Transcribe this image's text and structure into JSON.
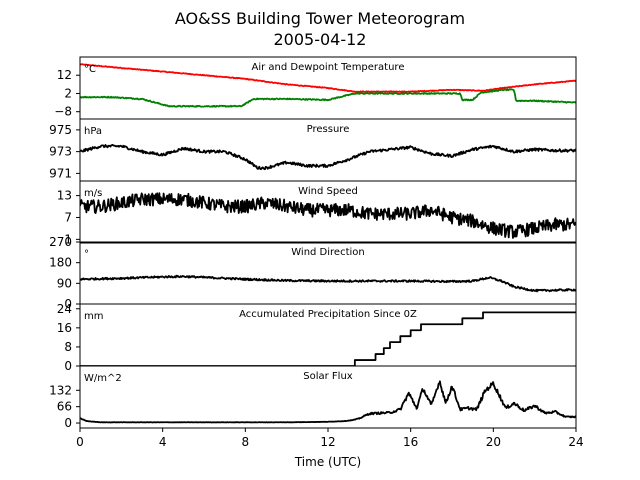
{
  "figure": {
    "title_line1": "AO&SS Building Tower Meteorogram",
    "title_line2": "2005-04-12",
    "xlabel": "Time (UTC)"
  },
  "chart_data": {
    "type": "line",
    "xlim": [
      0,
      24
    ],
    "xticks": [
      0,
      4,
      8,
      12,
      16,
      20,
      24
    ],
    "x_tick_labels": [
      "0",
      "4",
      "8",
      "12",
      "16",
      "20",
      "24"
    ],
    "panels": [
      {
        "id": "temperature",
        "title": "Air and Dewpoint Temperature",
        "unit": "°C",
        "ylim": [
          -12,
          22
        ],
        "yticks": [
          12,
          2,
          -8
        ],
        "y_tick_labels": [
          "12",
          "2",
          "−8"
        ],
        "series": [
          {
            "color": "#ff0000",
            "x": [
              0,
              2,
              4,
              6,
              8,
              10,
              12,
              13.3,
              14,
              16,
              18,
              19.5,
              20.5,
              22,
              24
            ],
            "y": [
              18,
              16,
              14,
              12,
              10,
              7,
              5,
              3,
              3,
              3,
              4,
              3.5,
              5,
              7,
              9
            ]
          },
          {
            "color": "#008000",
            "x": [
              0,
              1.5,
              3,
              4.3,
              5,
              6.5,
              7.8,
              8.4,
              10,
              12,
              13.3,
              14,
              16,
              18.4,
              18.5,
              19,
              19.4,
              20.5,
              21,
              21.1,
              22,
              24
            ],
            "y": [
              0,
              0,
              -1,
              -5,
              -5,
              -5,
              -5,
              -1,
              -1,
              -1.5,
              2,
              2,
              2,
              2,
              -1.5,
              -1.5,
              2.5,
              4,
              4,
              -2,
              -2,
              -3
            ]
          }
        ]
      },
      {
        "id": "pressure",
        "title": "Pressure",
        "unit": "hPa",
        "ylim": [
          970.3,
          976
        ],
        "yticks": [
          975,
          973,
          971
        ],
        "y_tick_labels": [
          "975",
          "973",
          "971"
        ],
        "series": [
          {
            "color": "#000000",
            "x": [
              0,
              1,
              2,
              3,
              4,
              5,
              6,
              7,
              8,
              8.6,
              9,
              10,
              11,
              12,
              13,
              14,
              15,
              16,
              17,
              18,
              19,
              20,
              21,
              22,
              23,
              24
            ],
            "y": [
              973,
              973.5,
              973.5,
              973,
              972.7,
              973.3,
              973,
              973,
              972.3,
              971.5,
              971.5,
              972,
              971.7,
              971.7,
              972.3,
              973,
              973.2,
              973.4,
              972.8,
              972.6,
              973.2,
              973.5,
              973,
              973.2,
              973.1,
              973.1
            ]
          }
        ]
      },
      {
        "id": "wind-speed",
        "title": "Wind Speed",
        "unit": "m/s",
        "ylim": [
          0,
          17
        ],
        "yticks": [
          13,
          7,
          1
        ],
        "y_tick_labels": [
          "13",
          "7",
          "1"
        ],
        "series": [
          {
            "color": "#000000",
            "x": [
              0,
              1,
              2,
              3,
              4,
              5,
              6,
              7,
              8,
              9,
              10,
              11,
              12,
              13,
              14,
              15,
              16,
              17,
              18,
              19,
              20,
              21,
              22,
              23,
              24
            ],
            "y": [
              10,
              10,
              11,
              12,
              12,
              12,
              11,
              10,
              10,
              11,
              10,
              9,
              9,
              9,
              8,
              8,
              8,
              9,
              7,
              6,
              4,
              3,
              4,
              5,
              5
            ]
          }
        ]
      },
      {
        "id": "wind-direction",
        "title": "Wind Direction",
        "unit": "°",
        "ylim": [
          0,
          270
        ],
        "yticks": [
          270,
          180,
          90,
          0
        ],
        "y_tick_labels": [
          "270",
          "180",
          "90",
          "0"
        ],
        "series": [
          {
            "color": "#000000",
            "x": [
              0,
              2,
              4,
              5,
              6,
              8,
              10,
              12,
              14,
              16,
              18,
              19,
              19.8,
              20.4,
              21,
              22,
              24
            ],
            "y": [
              108,
              112,
              118,
              120,
              116,
              108,
              102,
              100,
              100,
              100,
              98,
              100,
              115,
              100,
              75,
              58,
              62
            ]
          }
        ]
      },
      {
        "id": "precipitation",
        "title": "Accumulated Precipitation Since 0Z",
        "unit": "mm",
        "ylim": [
          0,
          26
        ],
        "yticks": [
          24,
          16,
          8,
          0
        ],
        "y_tick_labels": [
          "24",
          "16",
          "8",
          "0"
        ],
        "series": [
          {
            "color": "#000000",
            "step": true,
            "x": [
              0,
              13.3,
              14.3,
              14.7,
              15,
              15.5,
              16,
              16.5,
              17.5,
              18.5,
              19.5,
              24
            ],
            "y": [
              0,
              2.5,
              5,
              7.5,
              10,
              12.5,
              15,
              17.5,
              17.5,
              20,
              22.5,
              22.5
            ]
          }
        ]
      },
      {
        "id": "solar-flux",
        "title": "Solar Flux",
        "unit": "W/m^2",
        "ylim": [
          -20,
          230
        ],
        "yticks": [
          132,
          66,
          0
        ],
        "y_tick_labels": [
          "132",
          "66",
          "0"
        ],
        "series": [
          {
            "color": "#000000",
            "x": [
              0,
              0.3,
              1,
              6,
              10,
              12,
              12.8,
              13.2,
              13.5,
              14,
              14.5,
              15,
              15.5,
              15.9,
              16.3,
              16.6,
              17,
              17.4,
              17.7,
              18,
              18.4,
              18.8,
              19.2,
              19.6,
              20,
              20.3,
              20.6,
              21,
              21.5,
              22,
              22.5,
              23,
              23.5,
              24
            ],
            "y": [
              20,
              8,
              3,
              3,
              3,
              5,
              8,
              12,
              18,
              38,
              40,
              42,
              55,
              120,
              60,
              140,
              70,
              170,
              80,
              150,
              55,
              60,
              55,
              130,
              160,
              110,
              60,
              80,
              50,
              70,
              40,
              45,
              25,
              25
            ]
          }
        ]
      }
    ]
  }
}
